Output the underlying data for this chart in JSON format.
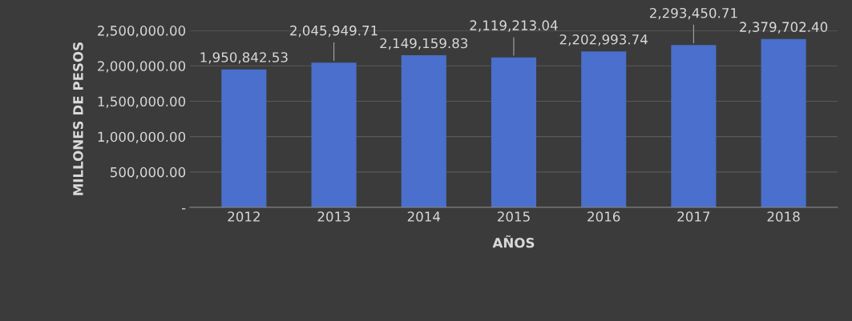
{
  "chart_data": {
    "type": "bar",
    "xlabel": "AÑOS",
    "ylabel": "MILLONES DE PESOS",
    "categories": [
      "2012",
      "2013",
      "2014",
      "2015",
      "2016",
      "2017",
      "2018"
    ],
    "values": [
      1950842.53,
      2045949.71,
      2149159.83,
      2119213.04,
      2202993.74,
      2293450.71,
      2379702.4
    ],
    "color": "#4a6fcc",
    "ylim": [
      0,
      2500000
    ],
    "yticks": [
      {
        "value": 0,
        "label": "-"
      },
      {
        "value": 500000,
        "label": "500,000.00"
      },
      {
        "value": 1000000,
        "label": "1,000,000.00"
      },
      {
        "value": 1500000,
        "label": "1,500,000.00"
      },
      {
        "value": 2000000,
        "label": "2,000,000.00"
      },
      {
        "value": 2500000,
        "label": "2,500,000.00"
      }
    ],
    "grid": "y",
    "value_labels": [
      "1,950,842.53",
      "2,045,949.71",
      "2,149,159.83",
      "2,119,213.04",
      "2,202,993.74",
      "2,293,450.71",
      "2,379,702.40"
    ]
  }
}
